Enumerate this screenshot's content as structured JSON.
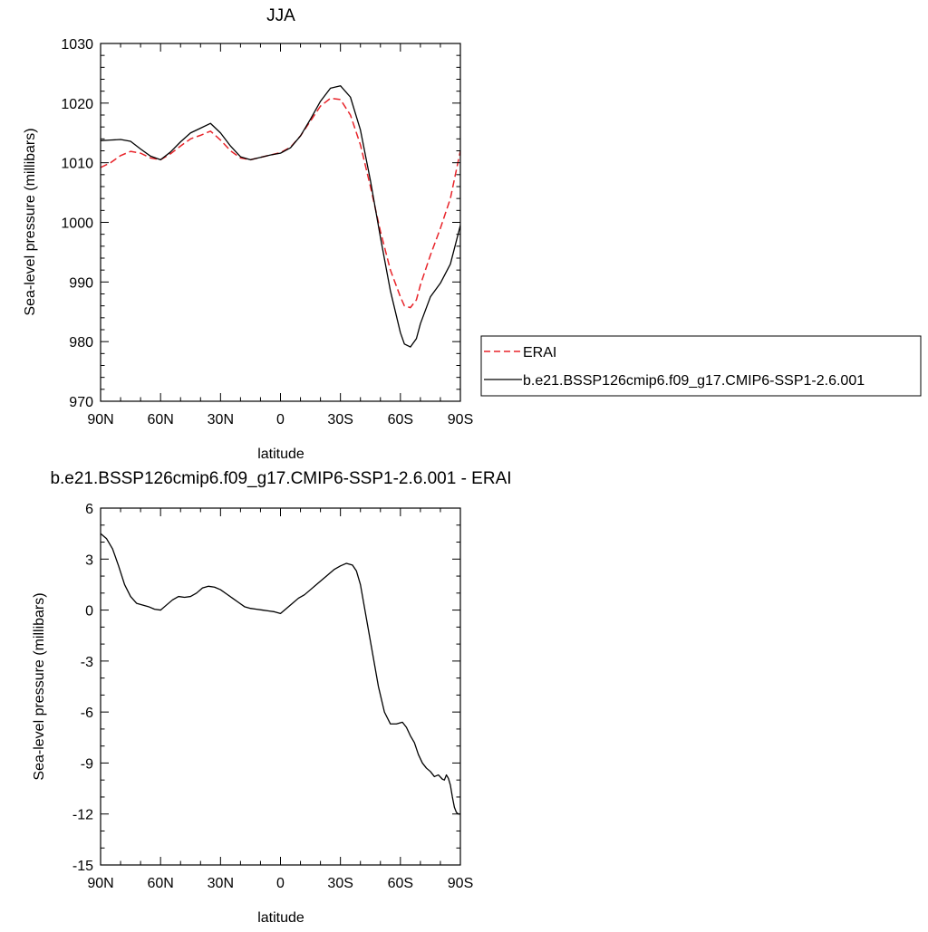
{
  "chart_data": [
    {
      "type": "line",
      "title": "JJA",
      "xlabel": "latitude",
      "ylabel": "Sea-level pressure (millibars)",
      "xlim": [
        90,
        -90
      ],
      "ylim": [
        970,
        1030
      ],
      "x_ticks": [
        {
          "value": 90,
          "label": "90N"
        },
        {
          "value": 60,
          "label": "60N"
        },
        {
          "value": 30,
          "label": "30N"
        },
        {
          "value": 0,
          "label": "0"
        },
        {
          "value": -30,
          "label": "30S"
        },
        {
          "value": -60,
          "label": "60S"
        },
        {
          "value": -90,
          "label": "90S"
        }
      ],
      "y_ticks": [
        {
          "value": 970,
          "label": "970"
        },
        {
          "value": 980,
          "label": "980"
        },
        {
          "value": 990,
          "label": "990"
        },
        {
          "value": 1000,
          "label": "1000"
        },
        {
          "value": 1010,
          "label": "1010"
        },
        {
          "value": 1020,
          "label": "1020"
        },
        {
          "value": 1030,
          "label": "1030"
        }
      ],
      "legend": {
        "placement": "right",
        "entries": [
          {
            "name": "ERAI",
            "color": "#e8242a",
            "dash": "dashed"
          },
          {
            "name": "b.e21.BSSP126cmip6.f09_g17.CMIP6-SSP1-2.6.001",
            "color": "#000000",
            "dash": "solid"
          }
        ]
      },
      "series": [
        {
          "name": "ERAI",
          "color": "#e8242a",
          "dash": "dashed",
          "x": [
            90,
            85,
            80,
            75,
            70,
            65,
            60,
            55,
            50,
            45,
            40,
            35,
            30,
            25,
            20,
            15,
            10,
            5,
            0,
            -5,
            -10,
            -15,
            -20,
            -25,
            -30,
            -35,
            -40,
            -45,
            -50,
            -55,
            -60,
            -62,
            -65,
            -68,
            -70,
            -75,
            -80,
            -85,
            -90
          ],
          "y": [
            1009.2,
            1010,
            1011.2,
            1011.9,
            1011.6,
            1010.8,
            1010.5,
            1011.5,
            1012.8,
            1014,
            1014.6,
            1015.3,
            1013.8,
            1012,
            1010.8,
            1010.5,
            1010.9,
            1011.3,
            1011.7,
            1012.6,
            1014.5,
            1017,
            1019.5,
            1020.8,
            1020.6,
            1018,
            1013,
            1006,
            998.5,
            992,
            987.5,
            986,
            985.7,
            987,
            989.5,
            994.5,
            999,
            1004,
            1012
          ]
        },
        {
          "name": "b.e21.BSSP126cmip6.f09_g17.CMIP6-SSP1-2.6.001",
          "color": "#000000",
          "dash": "solid",
          "x": [
            90,
            85,
            80,
            75,
            70,
            65,
            60,
            55,
            50,
            45,
            40,
            35,
            30,
            25,
            20,
            15,
            10,
            5,
            0,
            -5,
            -10,
            -15,
            -20,
            -25,
            -30,
            -35,
            -40,
            -45,
            -50,
            -55,
            -60,
            -62,
            -65,
            -68,
            -70,
            -75,
            -80,
            -85,
            -90
          ],
          "y": [
            1013.7,
            1013.8,
            1013.9,
            1013.6,
            1012.3,
            1011.1,
            1010.5,
            1011.8,
            1013.5,
            1015,
            1015.8,
            1016.6,
            1015,
            1012.8,
            1011,
            1010.5,
            1010.9,
            1011.3,
            1011.6,
            1012.5,
            1014.5,
            1017.3,
            1020.3,
            1022.5,
            1022.9,
            1021,
            1015.5,
            1007,
            997.5,
            988.5,
            981.5,
            979.6,
            979.1,
            980.5,
            983,
            987.5,
            989.8,
            993,
            999.5
          ]
        }
      ]
    },
    {
      "type": "line",
      "title": "b.e21.BSSP126cmip6.f09_g17.CMIP6-SSP1-2.6.001 - ERAI",
      "xlabel": "latitude",
      "ylabel": "Sea-level pressure (millibars)",
      "xlim": [
        90,
        -90
      ],
      "ylim": [
        -15,
        6
      ],
      "x_ticks": [
        {
          "value": 90,
          "label": "90N"
        },
        {
          "value": 60,
          "label": "60N"
        },
        {
          "value": 30,
          "label": "30N"
        },
        {
          "value": 0,
          "label": "0"
        },
        {
          "value": -30,
          "label": "30S"
        },
        {
          "value": -60,
          "label": "60S"
        },
        {
          "value": -90,
          "label": "90S"
        }
      ],
      "y_ticks": [
        {
          "value": -15,
          "label": "-15"
        },
        {
          "value": -12,
          "label": "-12"
        },
        {
          "value": -9,
          "label": "-9"
        },
        {
          "value": -6,
          "label": "-6"
        },
        {
          "value": -3,
          "label": "-3"
        },
        {
          "value": 0,
          "label": "0"
        },
        {
          "value": 3,
          "label": "3"
        },
        {
          "value": 6,
          "label": "6"
        }
      ],
      "series": [
        {
          "color": "#000000",
          "dash": "solid",
          "x": [
            90,
            87,
            84,
            81,
            78,
            75,
            72,
            69,
            66,
            63,
            60,
            57,
            54,
            51,
            48,
            45,
            42,
            39,
            36,
            33,
            30,
            27,
            24,
            21,
            18,
            15,
            12,
            9,
            6,
            3,
            0,
            -3,
            -6,
            -9,
            -12,
            -15,
            -18,
            -21,
            -24,
            -27,
            -30,
            -33,
            -36,
            -38,
            -40,
            -43,
            -46,
            -49,
            -52,
            -55,
            -58,
            -61,
            -63,
            -65,
            -67,
            -69,
            -71,
            -73,
            -75,
            -77,
            -79,
            -81,
            -82,
            -83,
            -84,
            -85,
            -86,
            -87,
            -88,
            -89,
            -90
          ],
          "y": [
            4.5,
            4.2,
            3.6,
            2.6,
            1.5,
            0.8,
            0.4,
            0.3,
            0.2,
            0.05,
            0,
            0.3,
            0.6,
            0.8,
            0.75,
            0.8,
            1.0,
            1.3,
            1.4,
            1.35,
            1.2,
            0.95,
            0.7,
            0.45,
            0.2,
            0.1,
            0.05,
            0,
            -0.05,
            -0.1,
            -0.2,
            0.1,
            0.4,
            0.7,
            0.9,
            1.2,
            1.5,
            1.8,
            2.1,
            2.4,
            2.6,
            2.75,
            2.65,
            2.3,
            1.5,
            -0.5,
            -2.5,
            -4.5,
            -6,
            -6.7,
            -6.7,
            -6.6,
            -6.9,
            -7.4,
            -7.8,
            -8.5,
            -9.0,
            -9.3,
            -9.5,
            -9.8,
            -9.7,
            -9.95,
            -10.0,
            -9.7,
            -9.9,
            -10.3,
            -11.0,
            -11.6,
            -11.9,
            -12.0,
            -12.0
          ]
        }
      ]
    }
  ]
}
